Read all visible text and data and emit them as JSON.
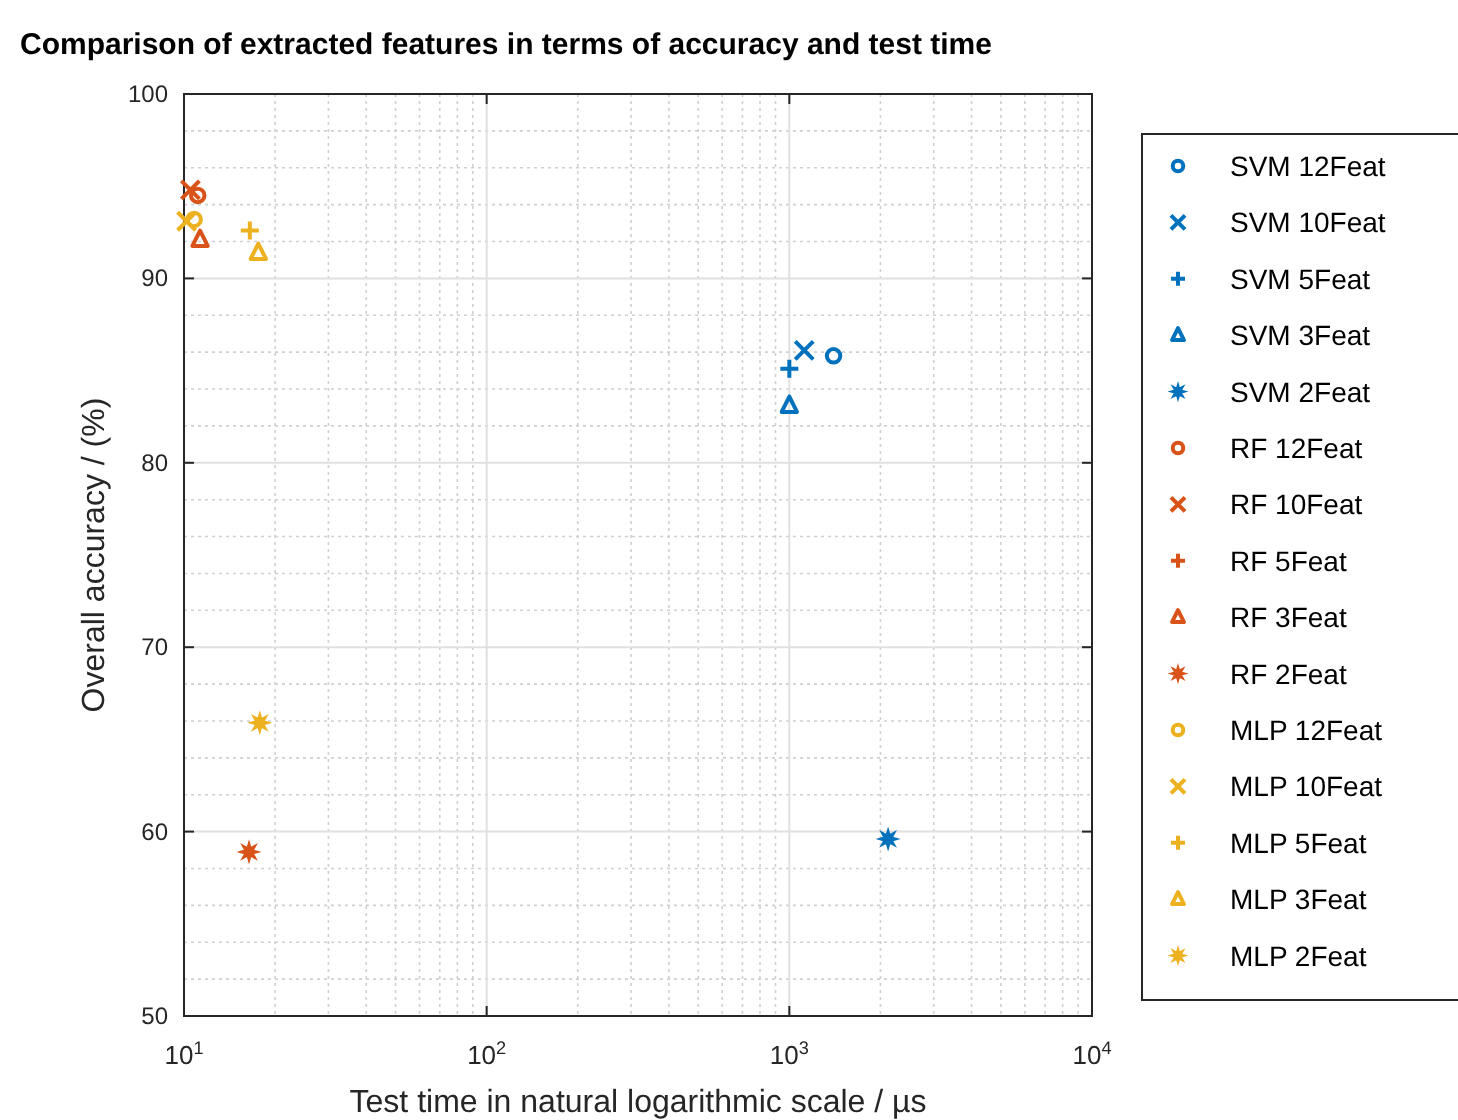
{
  "chart_data": {
    "type": "scatter",
    "title": "Comparison of extracted features in terms of accuracy and test time",
    "xlabel": "Test time in natural logarithmic scale / µs",
    "ylabel": "Overall accuracy / (%)",
    "log": "x",
    "grid": true,
    "legend": "right",
    "xlim": [
      10,
      10000
    ],
    "xticks": [
      {
        "value": 10,
        "label": "10$^{1}$"
      },
      {
        "value": 100,
        "label": "10$^{2}$"
      },
      {
        "value": 1000,
        "label": "10$^{3}$"
      },
      {
        "value": 10000,
        "label": "10$^{4}$"
      }
    ],
    "ylim": [
      50,
      100
    ],
    "yticks": [
      50,
      60,
      70,
      80,
      90,
      100
    ],
    "series": [
      {
        "name": "SVM 12Feat",
        "color": "#0072bd",
        "marker": "circle",
        "x": [
          1400
        ],
        "values": [
          85.8
        ]
      },
      {
        "name": "SVM 10Feat",
        "color": "#0072bd",
        "marker": "x",
        "x": [
          1120
        ],
        "values": [
          86.1
        ]
      },
      {
        "name": "SVM 5Feat",
        "color": "#0072bd",
        "marker": "cross",
        "x": [
          1000
        ],
        "values": [
          85.1
        ]
      },
      {
        "name": "SVM 3Feat",
        "color": "#0072bd",
        "marker": "triangle",
        "x": [
          1000
        ],
        "values": [
          83.1
        ]
      },
      {
        "name": "SVM 2Feat",
        "color": "#0072bd",
        "marker": "star",
        "x": [
          2120
        ],
        "values": [
          59.6
        ]
      },
      {
        "name": "RF 12Feat",
        "color": "#d95319",
        "marker": "circle",
        "x": [
          11.1
        ],
        "values": [
          94.5
        ]
      },
      {
        "name": "RF 10Feat",
        "color": "#d95319",
        "marker": "x",
        "x": [
          10.5
        ],
        "values": [
          94.8
        ]
      },
      {
        "name": "RF 5Feat",
        "color": "#d95319",
        "marker": "cross",
        "x": [
          null
        ],
        "values": [
          null
        ]
      },
      {
        "name": "RF 3Feat",
        "color": "#d95319",
        "marker": "triangle",
        "x": [
          11.3
        ],
        "values": [
          92.1
        ]
      },
      {
        "name": "RF 2Feat",
        "color": "#d95319",
        "marker": "star",
        "x": [
          16.4
        ],
        "values": [
          58.9
        ]
      },
      {
        "name": "MLP 12Feat",
        "color": "#edb120",
        "marker": "circle",
        "x": [
          10.8
        ],
        "values": [
          93.2
        ]
      },
      {
        "name": "MLP 10Feat",
        "color": "#edb120",
        "marker": "x",
        "x": [
          10.2
        ],
        "values": [
          93.1
        ]
      },
      {
        "name": "MLP 5Feat",
        "color": "#edb120",
        "marker": "cross",
        "x": [
          16.5
        ],
        "values": [
          92.6
        ]
      },
      {
        "name": "MLP 3Feat",
        "color": "#edb120",
        "marker": "triangle",
        "x": [
          17.6
        ],
        "values": [
          91.4
        ]
      },
      {
        "name": "MLP 2Feat",
        "color": "#edb120",
        "marker": "star",
        "x": [
          17.8
        ],
        "values": [
          65.9
        ]
      }
    ]
  }
}
